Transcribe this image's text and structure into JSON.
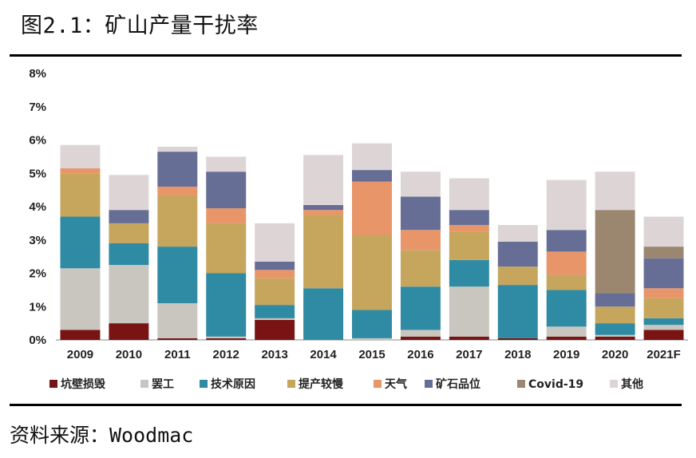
{
  "figure_title": "图2.1：矿山产量干扰率",
  "source": "资料来源：Woodmac",
  "chart_data": {
    "type": "bar",
    "stacked": true,
    "title": "",
    "xlabel": "",
    "ylabel": "",
    "ylim": [
      0,
      8
    ],
    "yticks": [
      "0%",
      "1%",
      "2%",
      "3%",
      "4%",
      "5%",
      "6%",
      "7%",
      "8%"
    ],
    "grid": false,
    "legend_position": "bottom",
    "categories": [
      "2009",
      "2010",
      "2011",
      "2012",
      "2013",
      "2014",
      "2015",
      "2016",
      "2017",
      "2018",
      "2019",
      "2020",
      "2021F"
    ],
    "series": [
      {
        "name": "坑壁损毁",
        "color": "#7a1414",
        "values": [
          0.3,
          0.5,
          0.05,
          0.05,
          0.6,
          0.0,
          0.0,
          0.1,
          0.1,
          0.05,
          0.1,
          0.1,
          0.3
        ]
      },
      {
        "name": "罢工",
        "color": "#c9c6bf",
        "values": [
          1.85,
          1.75,
          1.05,
          0.05,
          0.05,
          0.0,
          0.05,
          0.2,
          1.5,
          0.0,
          0.3,
          0.05,
          0.15
        ]
      },
      {
        "name": "技术原因",
        "color": "#2e8ba3",
        "values": [
          1.55,
          0.65,
          1.7,
          1.9,
          0.4,
          1.55,
          0.85,
          1.3,
          0.8,
          1.6,
          1.1,
          0.35,
          0.2
        ]
      },
      {
        "name": "提产较慢",
        "color": "#c6a55c",
        "values": [
          1.3,
          0.6,
          1.55,
          1.5,
          0.8,
          2.2,
          2.25,
          1.1,
          0.85,
          0.55,
          0.45,
          0.5,
          0.6
        ]
      },
      {
        "name": "天气",
        "color": "#e8956a",
        "values": [
          0.15,
          0.0,
          0.25,
          0.45,
          0.25,
          0.15,
          1.6,
          0.6,
          0.2,
          0.0,
          0.7,
          0.0,
          0.3
        ]
      },
      {
        "name": "矿石品位",
        "color": "#666e96",
        "values": [
          0.0,
          0.4,
          1.05,
          1.1,
          0.25,
          0.15,
          0.35,
          1.0,
          0.45,
          0.75,
          0.65,
          0.4,
          0.9
        ]
      },
      {
        "name": "Covid-19",
        "color": "#9b8670",
        "values": [
          0.0,
          0.0,
          0.0,
          0.0,
          0.0,
          0.0,
          0.0,
          0.0,
          0.0,
          0.0,
          0.0,
          2.5,
          0.35
        ]
      },
      {
        "name": "其他",
        "color": "#ddd5d5",
        "values": [
          0.7,
          1.05,
          0.15,
          0.45,
          1.15,
          1.5,
          0.8,
          0.75,
          0.95,
          0.5,
          1.5,
          1.15,
          0.9
        ]
      }
    ]
  }
}
